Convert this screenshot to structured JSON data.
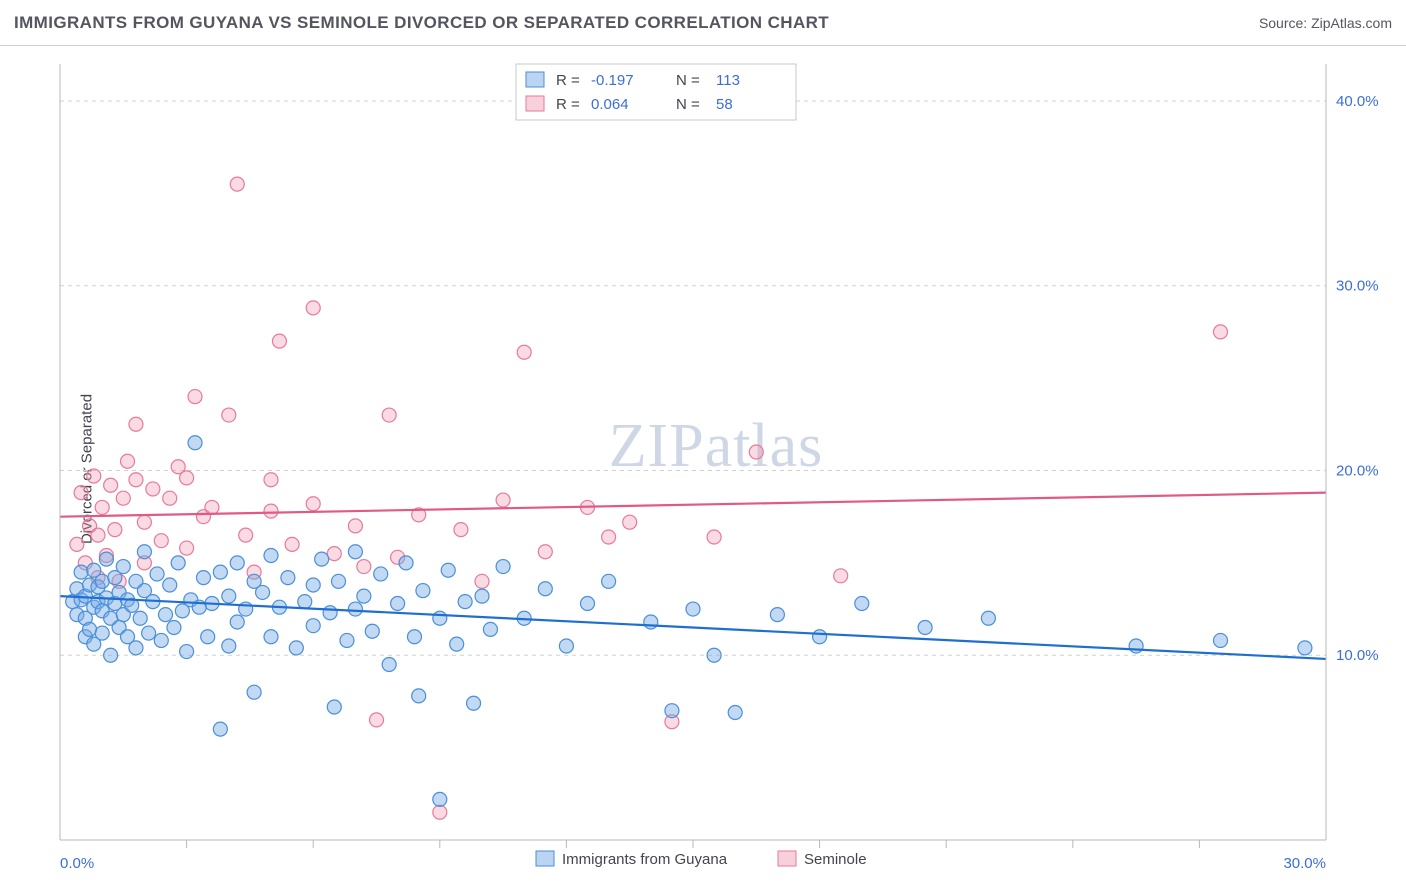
{
  "header": {
    "title": "IMMIGRANTS FROM GUYANA VS SEMINOLE DIVORCED OR SEPARATED CORRELATION CHART",
    "source_label": "Source:",
    "source_name": "ZipAtlas.com"
  },
  "axes": {
    "y_label": "Divorced or Separated",
    "x_min": 0.0,
    "x_max": 30.0,
    "y_min": 0.0,
    "y_max": 42.0,
    "y_ticks": [
      10.0,
      20.0,
      30.0,
      40.0
    ],
    "y_tick_labels": [
      "10.0%",
      "20.0%",
      "30.0%",
      "40.0%"
    ],
    "x_ticks": [
      0.0,
      30.0
    ],
    "x_tick_labels": [
      "0.0%",
      "30.0%"
    ],
    "x_minor_ticks": [
      3,
      6,
      9,
      12,
      15,
      18,
      21,
      24,
      27
    ],
    "grid_color": "#d0d0d0",
    "axis_color": "#b8b8b8",
    "tick_label_color": "#3a6fd8",
    "tick_label_fontsize": 15
  },
  "watermark": {
    "text_a": "ZIP",
    "text_b": "atlas"
  },
  "legend_stats": {
    "rows": [
      {
        "swatch": "blue",
        "R_label": "R =",
        "R": "-0.197",
        "N_label": "N =",
        "N": "113"
      },
      {
        "swatch": "pink",
        "R_label": "R =",
        "R": "0.064",
        "N_label": "N =",
        "N": "58"
      }
    ]
  },
  "bottom_legend": {
    "items": [
      {
        "swatch": "blue",
        "label": "Immigrants from Guyana"
      },
      {
        "swatch": "pink",
        "label": "Seminole"
      }
    ]
  },
  "chart": {
    "type": "scatter-with-trend",
    "background_color": "#ffffff",
    "point_radius": 7,
    "series": {
      "blue": {
        "color_fill": "rgba(120,170,230,0.45)",
        "color_stroke": "#4a8fd8",
        "trend_color": "#1f6fd0",
        "trend": {
          "x0": 0.0,
          "y0": 13.2,
          "x1": 30.0,
          "y1": 9.8
        },
        "points": [
          [
            0.3,
            12.9
          ],
          [
            0.4,
            13.6
          ],
          [
            0.4,
            12.2
          ],
          [
            0.5,
            13.0
          ],
          [
            0.5,
            14.5
          ],
          [
            0.6,
            11.0
          ],
          [
            0.6,
            12.0
          ],
          [
            0.6,
            13.2
          ],
          [
            0.7,
            11.4
          ],
          [
            0.7,
            13.8
          ],
          [
            0.8,
            12.6
          ],
          [
            0.8,
            14.6
          ],
          [
            0.8,
            10.6
          ],
          [
            0.9,
            12.9
          ],
          [
            0.9,
            13.7
          ],
          [
            1.0,
            11.2
          ],
          [
            1.0,
            12.4
          ],
          [
            1.0,
            14.0
          ],
          [
            1.1,
            13.1
          ],
          [
            1.1,
            15.2
          ],
          [
            1.2,
            12.0
          ],
          [
            1.2,
            10.0
          ],
          [
            1.3,
            12.8
          ],
          [
            1.3,
            14.2
          ],
          [
            1.4,
            11.5
          ],
          [
            1.4,
            13.4
          ],
          [
            1.5,
            12.2
          ],
          [
            1.5,
            14.8
          ],
          [
            1.6,
            13.0
          ],
          [
            1.6,
            11.0
          ],
          [
            1.7,
            12.7
          ],
          [
            1.8,
            14.0
          ],
          [
            1.8,
            10.4
          ],
          [
            1.9,
            12.0
          ],
          [
            2.0,
            13.5
          ],
          [
            2.0,
            15.6
          ],
          [
            2.1,
            11.2
          ],
          [
            2.2,
            12.9
          ],
          [
            2.3,
            14.4
          ],
          [
            2.4,
            10.8
          ],
          [
            2.5,
            12.2
          ],
          [
            2.6,
            13.8
          ],
          [
            2.7,
            11.5
          ],
          [
            2.8,
            15.0
          ],
          [
            2.9,
            12.4
          ],
          [
            3.0,
            10.2
          ],
          [
            3.1,
            13.0
          ],
          [
            3.2,
            21.5
          ],
          [
            3.3,
            12.6
          ],
          [
            3.4,
            14.2
          ],
          [
            3.5,
            11.0
          ],
          [
            3.6,
            12.8
          ],
          [
            3.8,
            6.0
          ],
          [
            3.8,
            14.5
          ],
          [
            4.0,
            10.5
          ],
          [
            4.0,
            13.2
          ],
          [
            4.2,
            15.0
          ],
          [
            4.2,
            11.8
          ],
          [
            4.4,
            12.5
          ],
          [
            4.6,
            14.0
          ],
          [
            4.6,
            8.0
          ],
          [
            4.8,
            13.4
          ],
          [
            5.0,
            11.0
          ],
          [
            5.0,
            15.4
          ],
          [
            5.2,
            12.6
          ],
          [
            5.4,
            14.2
          ],
          [
            5.6,
            10.4
          ],
          [
            5.8,
            12.9
          ],
          [
            6.0,
            13.8
          ],
          [
            6.0,
            11.6
          ],
          [
            6.2,
            15.2
          ],
          [
            6.4,
            12.3
          ],
          [
            6.5,
            7.2
          ],
          [
            6.6,
            14.0
          ],
          [
            6.8,
            10.8
          ],
          [
            7.0,
            12.5
          ],
          [
            7.0,
            15.6
          ],
          [
            7.2,
            13.2
          ],
          [
            7.4,
            11.3
          ],
          [
            7.6,
            14.4
          ],
          [
            7.8,
            9.5
          ],
          [
            8.0,
            12.8
          ],
          [
            8.2,
            15.0
          ],
          [
            8.4,
            11.0
          ],
          [
            8.5,
            7.8
          ],
          [
            8.6,
            13.5
          ],
          [
            9.0,
            2.2
          ],
          [
            9.0,
            12.0
          ],
          [
            9.2,
            14.6
          ],
          [
            9.4,
            10.6
          ],
          [
            9.6,
            12.9
          ],
          [
            9.8,
            7.4
          ],
          [
            10.0,
            13.2
          ],
          [
            10.2,
            11.4
          ],
          [
            10.5,
            14.8
          ],
          [
            11.0,
            12.0
          ],
          [
            11.5,
            13.6
          ],
          [
            12.0,
            10.5
          ],
          [
            12.5,
            12.8
          ],
          [
            13.0,
            14.0
          ],
          [
            14.0,
            11.8
          ],
          [
            14.5,
            7.0
          ],
          [
            15.0,
            12.5
          ],
          [
            15.5,
            10.0
          ],
          [
            16.0,
            6.9
          ],
          [
            17.0,
            12.2
          ],
          [
            18.0,
            11.0
          ],
          [
            19.0,
            12.8
          ],
          [
            20.5,
            11.5
          ],
          [
            22.0,
            12.0
          ],
          [
            25.5,
            10.5
          ],
          [
            27.5,
            10.8
          ],
          [
            29.5,
            10.4
          ]
        ]
      },
      "pink": {
        "color_fill": "rgba(240,150,175,0.35)",
        "color_stroke": "#e77a9a",
        "trend_color": "#e05a85",
        "trend": {
          "x0": 0.0,
          "y0": 17.5,
          "x1": 30.0,
          "y1": 18.8
        },
        "points": [
          [
            0.4,
            16.0
          ],
          [
            0.5,
            18.8
          ],
          [
            0.6,
            15.0
          ],
          [
            0.7,
            17.0
          ],
          [
            0.8,
            19.7
          ],
          [
            0.9,
            14.2
          ],
          [
            0.9,
            16.5
          ],
          [
            1.0,
            18.0
          ],
          [
            1.1,
            15.4
          ],
          [
            1.2,
            19.2
          ],
          [
            1.3,
            16.8
          ],
          [
            1.4,
            14.0
          ],
          [
            1.5,
            18.5
          ],
          [
            1.6,
            20.5
          ],
          [
            1.8,
            22.5
          ],
          [
            1.8,
            19.5
          ],
          [
            2.0,
            17.2
          ],
          [
            2.0,
            15.0
          ],
          [
            2.2,
            19.0
          ],
          [
            2.4,
            16.2
          ],
          [
            2.6,
            18.5
          ],
          [
            2.8,
            20.2
          ],
          [
            3.0,
            19.6
          ],
          [
            3.0,
            15.8
          ],
          [
            3.2,
            24.0
          ],
          [
            3.4,
            17.5
          ],
          [
            3.6,
            18.0
          ],
          [
            4.0,
            23.0
          ],
          [
            4.2,
            35.5
          ],
          [
            4.4,
            16.5
          ],
          [
            4.6,
            14.5
          ],
          [
            5.0,
            17.8
          ],
          [
            5.0,
            19.5
          ],
          [
            5.2,
            27.0
          ],
          [
            5.5,
            16.0
          ],
          [
            6.0,
            28.8
          ],
          [
            6.0,
            18.2
          ],
          [
            6.5,
            15.5
          ],
          [
            7.0,
            17.0
          ],
          [
            7.2,
            14.8
          ],
          [
            7.5,
            6.5
          ],
          [
            7.8,
            23.0
          ],
          [
            8.0,
            15.3
          ],
          [
            8.5,
            17.6
          ],
          [
            9.0,
            1.5
          ],
          [
            9.5,
            16.8
          ],
          [
            10.0,
            14.0
          ],
          [
            10.5,
            18.4
          ],
          [
            11.0,
            26.4
          ],
          [
            11.5,
            15.6
          ],
          [
            12.5,
            18.0
          ],
          [
            13.0,
            16.4
          ],
          [
            13.5,
            17.2
          ],
          [
            14.5,
            6.4
          ],
          [
            15.5,
            16.4
          ],
          [
            16.5,
            21.0
          ],
          [
            18.5,
            14.3
          ],
          [
            27.5,
            27.5
          ]
        ]
      }
    }
  }
}
